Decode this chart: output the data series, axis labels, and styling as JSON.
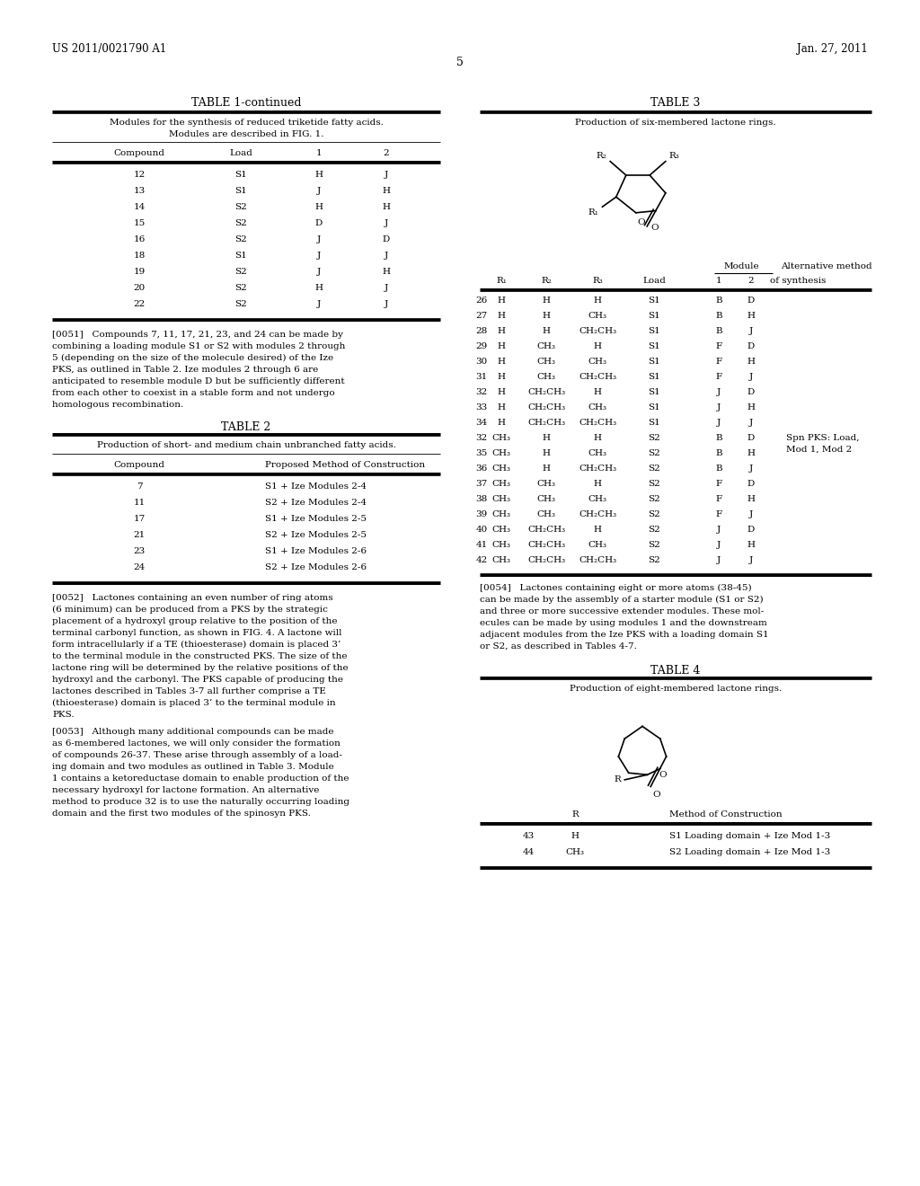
{
  "page_number": "5",
  "patent_number": "US 2011/0021790 A1",
  "patent_date": "Jan. 27, 2011",
  "bg_color": "#ffffff",
  "table1_rows": [
    [
      "12",
      "S1",
      "H",
      "J"
    ],
    [
      "13",
      "S1",
      "J",
      "H"
    ],
    [
      "14",
      "S2",
      "H",
      "H"
    ],
    [
      "15",
      "S2",
      "D",
      "J"
    ],
    [
      "16",
      "S2",
      "J",
      "D"
    ],
    [
      "18",
      "S1",
      "J",
      "J"
    ],
    [
      "19",
      "S2",
      "J",
      "H"
    ],
    [
      "20",
      "S2",
      "H",
      "J"
    ],
    [
      "22",
      "S2",
      "J",
      "J"
    ]
  ],
  "table2_rows": [
    [
      "7",
      "S1 + Ize Modules 2-4"
    ],
    [
      "11",
      "S2 + Ize Modules 2-4"
    ],
    [
      "17",
      "S1 + Ize Modules 2-5"
    ],
    [
      "21",
      "S2 + Ize Modules 2-5"
    ],
    [
      "23",
      "S1 + Ize Modules 2-6"
    ],
    [
      "24",
      "S2 + Ize Modules 2-6"
    ]
  ],
  "table3_rows": [
    [
      "26",
      "H",
      "H",
      "H",
      "S1",
      "B",
      "D",
      ""
    ],
    [
      "27",
      "H",
      "H",
      "CH₃",
      "S1",
      "B",
      "H",
      ""
    ],
    [
      "28",
      "H",
      "H",
      "CH₂CH₃",
      "S1",
      "B",
      "J",
      ""
    ],
    [
      "29",
      "H",
      "CH₃",
      "H",
      "S1",
      "F",
      "D",
      ""
    ],
    [
      "30",
      "H",
      "CH₃",
      "CH₃",
      "S1",
      "F",
      "H",
      ""
    ],
    [
      "31",
      "H",
      "CH₃",
      "CH₂CH₃",
      "S1",
      "F",
      "J",
      ""
    ],
    [
      "32",
      "H",
      "CH₂CH₃",
      "H",
      "S1",
      "J",
      "D",
      ""
    ],
    [
      "33",
      "H",
      "CH₂CH₃",
      "CH₃",
      "S1",
      "J",
      "H",
      ""
    ],
    [
      "34",
      "H",
      "CH₂CH₃",
      "CH₂CH₃",
      "S1",
      "J",
      "J",
      ""
    ],
    [
      "32",
      "CH₃",
      "H",
      "H",
      "S2",
      "B",
      "D",
      "Spn PKS: Load,\nMod 1, Mod 2"
    ],
    [
      "35",
      "CH₃",
      "H",
      "CH₃",
      "S2",
      "B",
      "H",
      ""
    ],
    [
      "36",
      "CH₃",
      "H",
      "CH₂CH₃",
      "S2",
      "B",
      "J",
      ""
    ],
    [
      "37",
      "CH₃",
      "CH₃",
      "H",
      "S2",
      "F",
      "D",
      ""
    ],
    [
      "38",
      "CH₃",
      "CH₃",
      "CH₃",
      "S2",
      "F",
      "H",
      ""
    ],
    [
      "39",
      "CH₃",
      "CH₃",
      "CH₂CH₃",
      "S2",
      "F",
      "J",
      ""
    ],
    [
      "40",
      "CH₃",
      "CH₂CH₃",
      "H",
      "S2",
      "J",
      "D",
      ""
    ],
    [
      "41",
      "CH₃",
      "CH₂CH₃",
      "CH₃",
      "S2",
      "J",
      "H",
      ""
    ],
    [
      "42",
      "CH₃",
      "CH₂CH₃",
      "CH₂CH₃",
      "S2",
      "J",
      "J",
      ""
    ]
  ],
  "table4_rows": [
    [
      "43",
      "H",
      "S1 Loading domain + Ize Mod 1-3"
    ],
    [
      "44",
      "CH₃",
      "S2 Loading domain + Ize Mod 1-3"
    ]
  ],
  "p51_lines": [
    "[0051]   Compounds 7, 11, 17, 21, 23, and 24 can be made by",
    "combining a loading module S1 or S2 with modules 2 through",
    "5 (depending on the size of the molecule desired) of the Ize",
    "PKS, as outlined in Table 2. Ize modules 2 through 6 are",
    "anticipated to resemble module D but be sufficiently different",
    "from each other to coexist in a stable form and not undergo",
    "homologous recombination."
  ],
  "p52_lines": [
    "[0052]   Lactones containing an even number of ring atoms",
    "(6 minimum) can be produced from a PKS by the strategic",
    "placement of a hydroxyl group relative to the position of the",
    "terminal carbonyl function, as shown in FIG. 4. A lactone will",
    "form intracellularly if a TE (thioesterase) domain is placed 3’",
    "to the terminal module in the constructed PKS. The size of the",
    "lactone ring will be determined by the relative positions of the",
    "hydroxyl and the carbonyl. The PKS capable of producing the",
    "lactones described in Tables 3-7 all further comprise a TE",
    "(thioesterase) domain is placed 3’ to the terminal module in",
    "PKS."
  ],
  "p53_lines": [
    "[0053]   Although many additional compounds can be made",
    "as 6-membered lactones, we will only consider the formation",
    "of compounds 26-37. These arise through assembly of a load-",
    "ing domain and two modules as outlined in Table 3. Module",
    "1 contains a ketoreductase domain to enable production of the",
    "necessary hydroxyl for lactone formation. An alternative",
    "method to produce 32 is to use the naturally occurring loading",
    "domain and the first two modules of the spinosyn PKS."
  ],
  "p54_lines": [
    "[0054]   Lactones containing eight or more atoms (38-45)",
    "can be made by the assembly of a starter module (S1 or S2)",
    "and three or more successive extender modules. These mol-",
    "ecules can be made by using modules 1 and the downstream",
    "adjacent modules from the Ize PKS with a loading domain S1",
    "or S2, as described in Tables 4-7."
  ]
}
